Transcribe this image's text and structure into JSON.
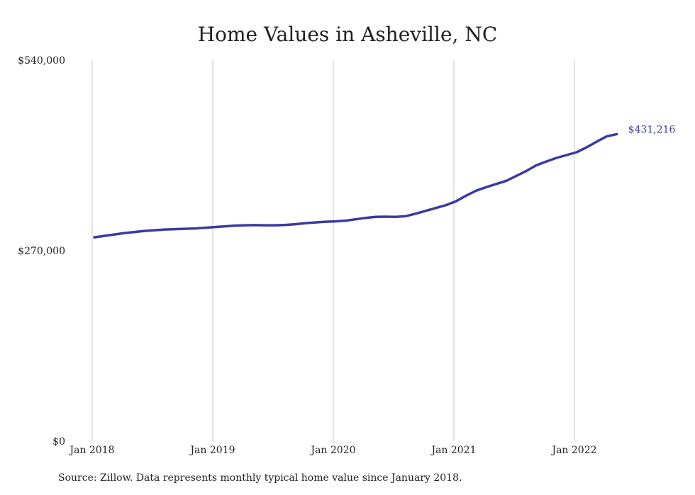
{
  "title": "Home Values in Asheville, NC",
  "source_note": "Source: Zillow. Data represents monthly typical home value since January 2018.",
  "colors": {
    "line": "#3a3aa0",
    "grid": "#c8c8c8",
    "text": "#222222",
    "end_label": "#3a3aa0"
  },
  "chart_data": {
    "type": "line",
    "title": "Home Values in Asheville, NC",
    "xlabel": "",
    "ylabel": "",
    "x_ticks": [
      "Jan 2018",
      "Jan 2019",
      "Jan 2020",
      "Jan 2021",
      "Jan 2022"
    ],
    "y_ticks": [
      "$0",
      "$270,000",
      "$540,000"
    ],
    "ylim": [
      0,
      540000
    ],
    "xlim_months": [
      0,
      53
    ],
    "grid": "vertical",
    "end_label": "$431,216",
    "series": [
      {
        "name": "",
        "x": [
          "2018-01",
          "2018-02",
          "2018-03",
          "2018-04",
          "2018-05",
          "2018-06",
          "2018-07",
          "2018-08",
          "2018-09",
          "2018-10",
          "2018-11",
          "2018-12",
          "2019-01",
          "2019-02",
          "2019-03",
          "2019-04",
          "2019-05",
          "2019-06",
          "2019-07",
          "2019-08",
          "2019-09",
          "2019-10",
          "2019-11",
          "2019-12",
          "2020-01",
          "2020-02",
          "2020-03",
          "2020-04",
          "2020-05",
          "2020-06",
          "2020-07",
          "2020-08",
          "2020-09",
          "2020-10",
          "2020-11",
          "2020-12",
          "2021-01",
          "2021-02",
          "2021-03",
          "2021-04",
          "2021-05",
          "2021-06",
          "2021-07",
          "2021-08",
          "2021-09",
          "2021-10",
          "2021-11",
          "2021-12",
          "2022-01",
          "2022-02",
          "2022-03",
          "2022-04",
          "2022-05"
        ],
        "values": [
          285000,
          287000,
          289000,
          291000,
          292500,
          294000,
          295000,
          296000,
          296500,
          297000,
          297500,
          298500,
          299500,
          300500,
          301500,
          302000,
          302200,
          302000,
          302000,
          302500,
          303500,
          305000,
          306000,
          307000,
          307500,
          308500,
          310500,
          312500,
          314000,
          314200,
          314000,
          315000,
          318500,
          322500,
          326500,
          330500,
          336000,
          344000,
          351000,
          356000,
          360500,
          365000,
          372000,
          379000,
          387000,
          392500,
          397500,
          401500,
          405500,
          412500,
          420500,
          428000,
          431216
        ]
      }
    ]
  }
}
